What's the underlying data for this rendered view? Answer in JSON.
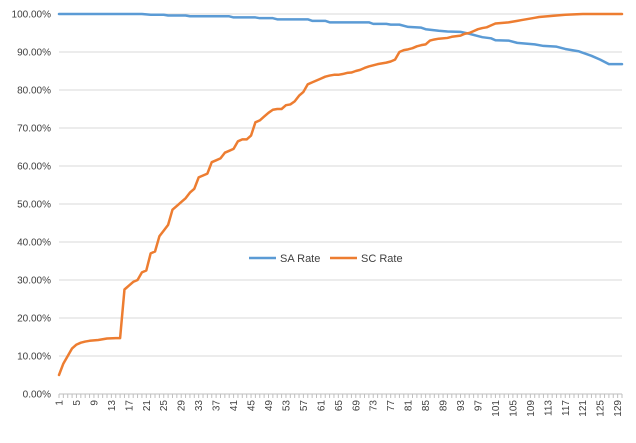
{
  "chart_data": {
    "type": "line",
    "title": "",
    "xlabel": "",
    "ylabel": "",
    "ylim": [
      0,
      100
    ],
    "xlim": [
      1,
      130
    ],
    "y_format": "percent_2dp",
    "y_ticks": [
      0,
      10,
      20,
      30,
      40,
      50,
      60,
      70,
      80,
      90,
      100
    ],
    "x_tick_labels": [
      1,
      5,
      9,
      13,
      17,
      21,
      25,
      29,
      33,
      37,
      41,
      45,
      49,
      53,
      57,
      61,
      65,
      69,
      73,
      77,
      81,
      85,
      89,
      93,
      97,
      101,
      105,
      109,
      113,
      117,
      121,
      125,
      129
    ],
    "grid": "horizontal",
    "legend": "center",
    "series": [
      {
        "name": "SA Rate",
        "color": "#5B9BD5",
        "points": [
          [
            1,
            100
          ],
          [
            20,
            100
          ],
          [
            22,
            99.8
          ],
          [
            25,
            99.8
          ],
          [
            26,
            99.6
          ],
          [
            30,
            99.6
          ],
          [
            31,
            99.4
          ],
          [
            40,
            99.4
          ],
          [
            41,
            99.1
          ],
          [
            46,
            99.1
          ],
          [
            47,
            98.9
          ],
          [
            50,
            98.9
          ],
          [
            51,
            98.6
          ],
          [
            58,
            98.6
          ],
          [
            59,
            98.2
          ],
          [
            62,
            98.2
          ],
          [
            63,
            97.8
          ],
          [
            72,
            97.8
          ],
          [
            73,
            97.4
          ],
          [
            76,
            97.4
          ],
          [
            77,
            97.2
          ],
          [
            79,
            97.2
          ],
          [
            81,
            96.6
          ],
          [
            84,
            96.4
          ],
          [
            85,
            96.0
          ],
          [
            88,
            95.6
          ],
          [
            90,
            95.4
          ],
          [
            93,
            95.3
          ],
          [
            95,
            94.8
          ],
          [
            97,
            94.2
          ],
          [
            98,
            93.9
          ],
          [
            100,
            93.6
          ],
          [
            101,
            93.1
          ],
          [
            104,
            93.0
          ],
          [
            106,
            92.4
          ],
          [
            110,
            92.0
          ],
          [
            112,
            91.6
          ],
          [
            115,
            91.4
          ],
          [
            117,
            90.8
          ],
          [
            120,
            90.2
          ],
          [
            123,
            89.0
          ],
          [
            125,
            88.0
          ],
          [
            127,
            86.8
          ],
          [
            130,
            86.8
          ]
        ]
      },
      {
        "name": "SC Rate",
        "color": "#ED7D31",
        "points": [
          [
            1,
            5.0
          ],
          [
            2,
            8.0
          ],
          [
            3,
            10.0
          ],
          [
            4,
            12.0
          ],
          [
            5,
            13.0
          ],
          [
            6,
            13.5
          ],
          [
            7,
            13.8
          ],
          [
            8,
            14.0
          ],
          [
            10,
            14.2
          ],
          [
            12,
            14.6
          ],
          [
            14,
            14.7
          ],
          [
            15,
            14.7
          ],
          [
            16,
            27.5
          ],
          [
            17,
            28.5
          ],
          [
            18,
            29.5
          ],
          [
            19,
            30.0
          ],
          [
            20,
            32.0
          ],
          [
            21,
            32.5
          ],
          [
            22,
            37.0
          ],
          [
            23,
            37.5
          ],
          [
            24,
            41.5
          ],
          [
            25,
            43.0
          ],
          [
            26,
            44.5
          ],
          [
            27,
            48.5
          ],
          [
            28,
            49.5
          ],
          [
            29,
            50.5
          ],
          [
            30,
            51.5
          ],
          [
            31,
            53.0
          ],
          [
            32,
            54.0
          ],
          [
            33,
            57.0
          ],
          [
            34,
            57.5
          ],
          [
            35,
            58.0
          ],
          [
            36,
            61.0
          ],
          [
            37,
            61.5
          ],
          [
            38,
            62.0
          ],
          [
            39,
            63.5
          ],
          [
            40,
            64.0
          ],
          [
            41,
            64.5
          ],
          [
            42,
            66.5
          ],
          [
            43,
            67.0
          ],
          [
            44,
            67.0
          ],
          [
            45,
            68.0
          ],
          [
            46,
            71.5
          ],
          [
            47,
            72.0
          ],
          [
            48,
            73.0
          ],
          [
            49,
            74.0
          ],
          [
            50,
            74.8
          ],
          [
            51,
            75.0
          ],
          [
            52,
            75.0
          ],
          [
            53,
            76.0
          ],
          [
            54,
            76.2
          ],
          [
            55,
            77.0
          ],
          [
            56,
            78.5
          ],
          [
            57,
            79.5
          ],
          [
            58,
            81.5
          ],
          [
            59,
            82.0
          ],
          [
            60,
            82.5
          ],
          [
            61,
            83.0
          ],
          [
            62,
            83.5
          ],
          [
            63,
            83.8
          ],
          [
            64,
            84.0
          ],
          [
            65,
            84.0
          ],
          [
            66,
            84.2
          ],
          [
            67,
            84.5
          ],
          [
            68,
            84.6
          ],
          [
            69,
            85.0
          ],
          [
            70,
            85.3
          ],
          [
            71,
            85.8
          ],
          [
            72,
            86.2
          ],
          [
            73,
            86.5
          ],
          [
            74,
            86.8
          ],
          [
            75,
            87.0
          ],
          [
            76,
            87.2
          ],
          [
            77,
            87.5
          ],
          [
            78,
            88.0
          ],
          [
            79,
            90.0
          ],
          [
            80,
            90.5
          ],
          [
            81,
            90.7
          ],
          [
            82,
            91.0
          ],
          [
            83,
            91.5
          ],
          [
            84,
            91.8
          ],
          [
            85,
            92.0
          ],
          [
            86,
            93.0
          ],
          [
            87,
            93.3
          ],
          [
            88,
            93.5
          ],
          [
            90,
            93.7
          ],
          [
            91,
            94.0
          ],
          [
            93,
            94.3
          ],
          [
            94,
            94.8
          ],
          [
            95,
            95.0
          ],
          [
            96,
            95.5
          ],
          [
            97,
            96.0
          ],
          [
            98,
            96.3
          ],
          [
            99,
            96.5
          ],
          [
            100,
            97.0
          ],
          [
            101,
            97.5
          ],
          [
            102,
            97.6
          ],
          [
            103,
            97.7
          ],
          [
            104,
            97.8
          ],
          [
            105,
            98.0
          ],
          [
            106,
            98.2
          ],
          [
            107,
            98.4
          ],
          [
            108,
            98.6
          ],
          [
            109,
            98.8
          ],
          [
            110,
            99.0
          ],
          [
            111,
            99.2
          ],
          [
            113,
            99.4
          ],
          [
            115,
            99.6
          ],
          [
            117,
            99.8
          ],
          [
            119,
            99.9
          ],
          [
            121,
            100
          ],
          [
            130,
            100
          ]
        ]
      }
    ]
  }
}
